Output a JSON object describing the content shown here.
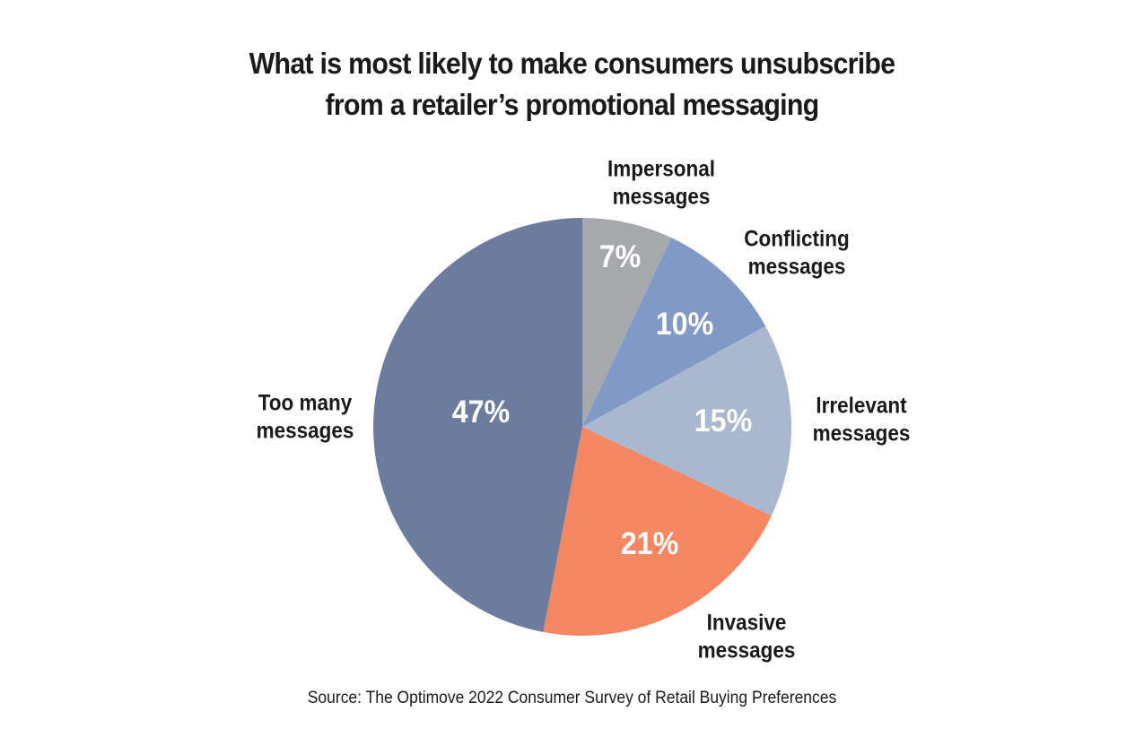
{
  "chart_data": {
    "type": "pie",
    "title_lines": [
      "What is most likely to make consumers unsubscribe",
      "from a retailer’s promotional messaging"
    ],
    "slices": [
      {
        "label_lines": [
          "Impersonal",
          "messages"
        ],
        "value": 7,
        "value_label": "7%",
        "color": "#a6a8ab"
      },
      {
        "label_lines": [
          "Conflicting",
          "messages"
        ],
        "value": 10,
        "value_label": "10%",
        "color": "#8199c6"
      },
      {
        "label_lines": [
          "Irrelevant",
          "messages"
        ],
        "value": 15,
        "value_label": "15%",
        "color": "#a9b7cf"
      },
      {
        "label_lines": [
          "Invasive",
          "messages"
        ],
        "value": 21,
        "value_label": "21%",
        "color": "#f48662"
      },
      {
        "label_lines": [
          "Too many",
          "messages"
        ],
        "value": 47,
        "value_label": "47%",
        "color": "#6b7c9e"
      }
    ],
    "start_angle_deg": 0,
    "direction": "clockwise",
    "source": "Source: The Optimove 2022 Consumer Survey of Retail Buying Preferences"
  }
}
